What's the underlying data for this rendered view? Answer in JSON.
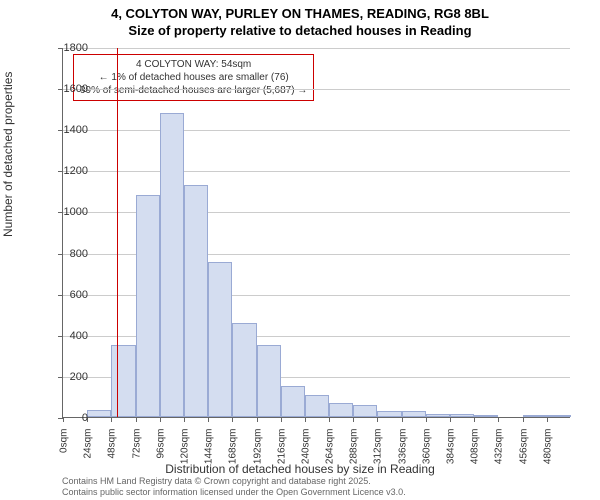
{
  "title": {
    "line1": "4, COLYTON WAY, PURLEY ON THAMES, READING, RG8 8BL",
    "line2": "Size of property relative to detached houses in Reading"
  },
  "chart": {
    "type": "histogram",
    "background_color": "#ffffff",
    "grid_color": "#cccccc",
    "bar_fill": "#d4ddf0",
    "bar_stroke": "#9aaad4",
    "ref_line_color": "#cc0000",
    "ref_line_x": 54,
    "xlim": [
      0,
      504
    ],
    "ylim": [
      0,
      1800
    ],
    "y_ticks": [
      0,
      200,
      400,
      600,
      800,
      1000,
      1200,
      1400,
      1600,
      1800
    ],
    "x_ticks": [
      0,
      24,
      48,
      72,
      96,
      120,
      144,
      168,
      192,
      216,
      240,
      264,
      288,
      312,
      336,
      360,
      384,
      408,
      432,
      456,
      480
    ],
    "x_tick_suffix": "sqm",
    "bin_width": 24,
    "bars": [
      {
        "x0": 0,
        "count": 0
      },
      {
        "x0": 24,
        "count": 35
      },
      {
        "x0": 48,
        "count": 350
      },
      {
        "x0": 72,
        "count": 1080
      },
      {
        "x0": 96,
        "count": 1480
      },
      {
        "x0": 120,
        "count": 1130
      },
      {
        "x0": 144,
        "count": 755
      },
      {
        "x0": 168,
        "count": 455
      },
      {
        "x0": 192,
        "count": 350
      },
      {
        "x0": 216,
        "count": 150
      },
      {
        "x0": 240,
        "count": 105
      },
      {
        "x0": 264,
        "count": 70
      },
      {
        "x0": 288,
        "count": 60
      },
      {
        "x0": 312,
        "count": 30
      },
      {
        "x0": 336,
        "count": 30
      },
      {
        "x0": 360,
        "count": 15
      },
      {
        "x0": 384,
        "count": 15
      },
      {
        "x0": 408,
        "count": 10
      },
      {
        "x0": 432,
        "count": 0
      },
      {
        "x0": 456,
        "count": 10
      },
      {
        "x0": 480,
        "count": 5
      }
    ],
    "ylabel": "Number of detached properties",
    "xlabel": "Distribution of detached houses by size in Reading",
    "label_fontsize": 12,
    "tick_fontsize": 11
  },
  "annotation": {
    "line1": "4 COLYTON WAY: 54sqm",
    "line2": "← 1% of detached houses are smaller (76)",
    "line3": "99% of semi-detached houses are larger (5,687) →",
    "border_color": "#cc0000",
    "fontsize": 10
  },
  "footer": {
    "line1": "Contains HM Land Registry data © Crown copyright and database right 2025.",
    "line2": "Contains public sector information licensed under the Open Government Licence v3.0."
  }
}
